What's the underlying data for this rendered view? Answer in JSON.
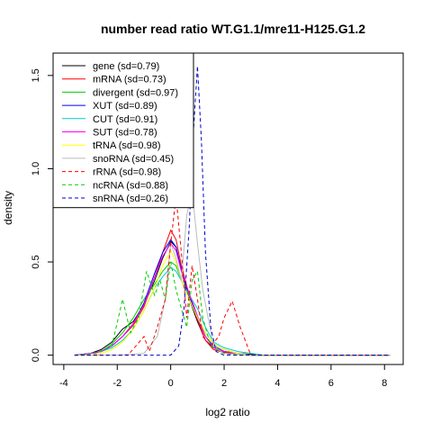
{
  "chart_data": {
    "type": "line",
    "title": "number read ratio WT.G1.1/mre11-H125.G1.2",
    "xlabel": "log2 ratio",
    "ylabel": "density",
    "xlim": [
      -4.4,
      8.7
    ],
    "ylim": [
      -0.05,
      1.62
    ],
    "x_ticks": [
      -4,
      -2,
      0,
      2,
      4,
      6,
      8
    ],
    "y_ticks": [
      0.0,
      0.5,
      1.0,
      1.5
    ],
    "x_tick_labels": [
      "-4",
      "-2",
      "0",
      "2",
      "4",
      "6",
      "8"
    ],
    "y_tick_labels": [
      "0.0",
      "0.5",
      "1.0",
      "1.5"
    ],
    "legend_position": "top-left",
    "grid": false,
    "series": [
      {
        "name": "gene (sd=0.79)",
        "color": "#000000",
        "dash": "solid",
        "x": [
          -3.6,
          -3.0,
          -2.6,
          -2.2,
          -1.8,
          -1.4,
          -1.0,
          -0.6,
          -0.3,
          0.0,
          0.2,
          0.4,
          0.7,
          1.0,
          1.3,
          1.6,
          2.0,
          2.5,
          3.0,
          3.5,
          4.5,
          6.0,
          8.2
        ],
        "y": [
          0.0,
          0.01,
          0.03,
          0.07,
          0.14,
          0.18,
          0.27,
          0.4,
          0.52,
          0.61,
          0.58,
          0.45,
          0.3,
          0.18,
          0.08,
          0.04,
          0.02,
          0.01,
          0.005,
          0,
          0,
          0,
          0
        ]
      },
      {
        "name": "mRNA (sd=0.73)",
        "color": "#ff0000",
        "dash": "solid",
        "x": [
          -3.6,
          -3.0,
          -2.6,
          -2.2,
          -1.8,
          -1.4,
          -1.0,
          -0.6,
          -0.3,
          0.0,
          0.2,
          0.4,
          0.7,
          1.0,
          1.3,
          1.6,
          2.0,
          2.5,
          3.0,
          3.5,
          4.5,
          6.0,
          8.2
        ],
        "y": [
          0.0,
          0.01,
          0.02,
          0.05,
          0.1,
          0.16,
          0.26,
          0.42,
          0.55,
          0.67,
          0.62,
          0.48,
          0.32,
          0.19,
          0.08,
          0.03,
          0.015,
          0.005,
          0,
          0,
          0,
          0,
          0
        ]
      },
      {
        "name": "divergent (sd=0.97)",
        "color": "#00cc00",
        "dash": "solid",
        "x": [
          -3.6,
          -3.0,
          -2.6,
          -2.2,
          -1.8,
          -1.4,
          -1.0,
          -0.6,
          -0.3,
          0.0,
          0.2,
          0.4,
          0.7,
          1.0,
          1.3,
          1.6,
          2.0,
          2.5,
          3.0,
          3.5,
          4.5,
          6.0,
          8.2
        ],
        "y": [
          0.0,
          0.01,
          0.02,
          0.06,
          0.12,
          0.2,
          0.3,
          0.38,
          0.45,
          0.5,
          0.48,
          0.4,
          0.3,
          0.2,
          0.12,
          0.06,
          0.03,
          0.01,
          0,
          0,
          0,
          0,
          0
        ]
      },
      {
        "name": "XUT (sd=0.89)",
        "color": "#0000ff",
        "dash": "solid",
        "x": [
          -3.6,
          -3.0,
          -2.6,
          -2.2,
          -1.8,
          -1.4,
          -1.0,
          -0.6,
          -0.3,
          0.0,
          0.2,
          0.4,
          0.7,
          1.0,
          1.3,
          1.6,
          2.0,
          2.5,
          3.0,
          3.5,
          4.5,
          6.0,
          8.2
        ],
        "y": [
          0.0,
          0.01,
          0.02,
          0.05,
          0.1,
          0.17,
          0.28,
          0.44,
          0.55,
          0.62,
          0.58,
          0.46,
          0.32,
          0.2,
          0.1,
          0.05,
          0.02,
          0.01,
          0,
          0,
          0,
          0,
          0
        ]
      },
      {
        "name": "CUT (sd=0.91)",
        "color": "#00cccc",
        "dash": "solid",
        "x": [
          -3.6,
          -3.0,
          -2.6,
          -2.2,
          -1.8,
          -1.4,
          -1.0,
          -0.6,
          -0.3,
          0.0,
          0.2,
          0.4,
          0.7,
          1.0,
          1.3,
          1.6,
          2.0,
          2.5,
          3.0,
          3.5,
          4.5,
          6.0,
          8.2
        ],
        "y": [
          0.0,
          0.01,
          0.02,
          0.04,
          0.08,
          0.14,
          0.24,
          0.36,
          0.42,
          0.47,
          0.45,
          0.4,
          0.32,
          0.25,
          0.15,
          0.07,
          0.04,
          0.02,
          0.01,
          0,
          0,
          0,
          0
        ]
      },
      {
        "name": "SUT (sd=0.78)",
        "color": "#ff00ff",
        "dash": "solid",
        "x": [
          -3.6,
          -3.0,
          -2.6,
          -2.2,
          -1.8,
          -1.4,
          -1.0,
          -0.6,
          -0.3,
          0.0,
          0.2,
          0.4,
          0.7,
          1.0,
          1.3,
          1.6,
          2.0,
          2.5,
          3.0,
          3.5,
          4.5,
          6.0,
          8.2
        ],
        "y": [
          0.0,
          0.01,
          0.02,
          0.05,
          0.1,
          0.17,
          0.27,
          0.42,
          0.53,
          0.6,
          0.56,
          0.45,
          0.33,
          0.21,
          0.1,
          0.04,
          0.02,
          0.01,
          0,
          0,
          0,
          0,
          0
        ]
      },
      {
        "name": "tRNA (sd=0.98)",
        "color": "#ffff00",
        "dash": "solid",
        "x": [
          -3.6,
          -3.0,
          -2.6,
          -2.2,
          -1.8,
          -1.4,
          -1.0,
          -0.6,
          -0.3,
          0.0,
          0.2,
          0.4,
          0.7,
          1.0,
          1.3,
          1.6,
          2.0,
          2.5,
          3.0,
          3.5,
          4.5,
          6.0,
          8.2
        ],
        "y": [
          0.0,
          0.0,
          0.01,
          0.03,
          0.07,
          0.14,
          0.24,
          0.36,
          0.48,
          0.56,
          0.5,
          0.4,
          0.3,
          0.2,
          0.12,
          0.06,
          0.03,
          0.01,
          0,
          0,
          0,
          0,
          0
        ]
      },
      {
        "name": "snoRNA (sd=0.45)",
        "color": "#bbbbbb",
        "dash": "solid",
        "x": [
          -3.6,
          -2.0,
          -1.0,
          -0.5,
          -0.2,
          0.0,
          0.2,
          0.4,
          0.6,
          0.8,
          1.0,
          1.2,
          1.4,
          1.6,
          2.0,
          3.0,
          4.5,
          6.0,
          8.2
        ],
        "y": [
          0,
          0,
          0.01,
          0.1,
          0.3,
          0.6,
          0.52,
          0.4,
          0.75,
          0.88,
          0.6,
          0.35,
          0.2,
          0.05,
          0.01,
          0,
          0,
          0,
          0
        ]
      },
      {
        "name": "rRNA (sd=0.98)",
        "color": "#ff0000",
        "dash": "dashed",
        "x": [
          -3.6,
          -2.0,
          -1.6,
          -1.3,
          -1.0,
          -0.8,
          -0.5,
          -0.2,
          0.0,
          0.2,
          0.4,
          0.6,
          0.8,
          1.0,
          1.2,
          1.5,
          1.8,
          2.0,
          2.3,
          2.6,
          3.0,
          4.5,
          6.0,
          8.2
        ],
        "y": [
          0,
          0,
          0,
          0.05,
          0.1,
          0.02,
          0.15,
          0.3,
          0.6,
          0.85,
          0.55,
          0.2,
          0.48,
          0.3,
          0.1,
          0.05,
          0.1,
          0.2,
          0.29,
          0.15,
          0,
          0,
          0,
          0
        ]
      },
      {
        "name": "ncRNA (sd=0.88)",
        "color": "#00cc00",
        "dash": "dashed",
        "x": [
          -3.6,
          -2.8,
          -2.2,
          -1.8,
          -1.5,
          -1.2,
          -0.9,
          -0.6,
          -0.4,
          -0.2,
          0.0,
          0.2,
          0.4,
          0.6,
          0.8,
          1.0,
          1.2,
          1.5,
          2.0,
          2.5,
          3.0,
          4.5,
          6.0,
          8.2
        ],
        "y": [
          0,
          0.01,
          0.05,
          0.3,
          0.12,
          0.2,
          0.45,
          0.32,
          0.4,
          0.3,
          0.5,
          0.35,
          0.25,
          0.15,
          0.4,
          0.45,
          0.2,
          0.05,
          0.01,
          0,
          0,
          0,
          0,
          0
        ]
      },
      {
        "name": "snRNA (sd=0.26)",
        "color": "#0000cc",
        "dash": "dashed",
        "x": [
          -3.6,
          -1.0,
          0.0,
          0.3,
          0.5,
          0.7,
          0.85,
          1.0,
          1.15,
          1.3,
          1.5,
          1.7,
          2.0,
          3.0,
          4.5,
          6.0,
          8.2
        ],
        "y": [
          0,
          0,
          0,
          0.05,
          0.25,
          0.7,
          1.2,
          1.55,
          1.15,
          0.55,
          0.15,
          0.02,
          0,
          0,
          0,
          0,
          0
        ]
      }
    ]
  }
}
